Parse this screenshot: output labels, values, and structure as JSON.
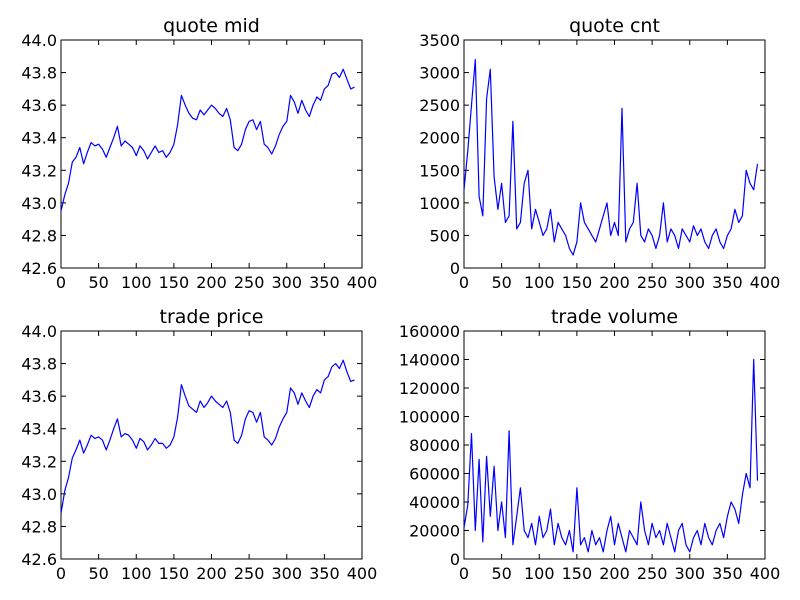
{
  "figure": {
    "background": "#ffffff",
    "line_color": "#0000ff"
  },
  "chart_data": [
    {
      "type": "line",
      "title": "quote mid",
      "xlabel": "",
      "ylabel": "",
      "xlim": [
        0,
        400
      ],
      "ylim": [
        42.6,
        44.0
      ],
      "xticks": [
        "0",
        "50",
        "100",
        "150",
        "200",
        "250",
        "300",
        "350",
        "400"
      ],
      "yticks": [
        "42.6",
        "42.8",
        "43.0",
        "43.2",
        "43.4",
        "43.6",
        "43.8",
        "44.0"
      ],
      "grid": false,
      "x": [
        0,
        5,
        10,
        15,
        20,
        25,
        30,
        35,
        40,
        45,
        50,
        55,
        60,
        65,
        70,
        75,
        80,
        85,
        90,
        95,
        100,
        105,
        110,
        115,
        120,
        125,
        130,
        135,
        140,
        145,
        150,
        155,
        160,
        165,
        170,
        175,
        180,
        185,
        190,
        195,
        200,
        205,
        210,
        215,
        220,
        225,
        230,
        235,
        240,
        245,
        250,
        255,
        260,
        265,
        270,
        275,
        280,
        285,
        290,
        295,
        300,
        305,
        310,
        315,
        320,
        325,
        330,
        335,
        340,
        345,
        350,
        355,
        360,
        365,
        370,
        375,
        380,
        385,
        390
      ],
      "values": [
        42.95,
        43.05,
        43.12,
        43.25,
        43.28,
        43.34,
        43.24,
        43.31,
        43.37,
        43.35,
        43.36,
        43.33,
        43.28,
        43.34,
        43.4,
        43.47,
        43.35,
        43.38,
        43.36,
        43.34,
        43.29,
        43.35,
        43.32,
        43.27,
        43.31,
        43.35,
        43.31,
        43.32,
        43.28,
        43.31,
        43.36,
        43.48,
        43.66,
        43.6,
        43.55,
        43.52,
        43.51,
        43.57,
        43.54,
        43.57,
        43.6,
        43.58,
        43.55,
        43.53,
        43.58,
        43.51,
        43.34,
        43.32,
        43.36,
        43.45,
        43.5,
        43.51,
        43.45,
        43.5,
        43.36,
        43.34,
        43.3,
        43.35,
        43.42,
        43.47,
        43.5,
        43.66,
        43.62,
        43.55,
        43.63,
        43.57,
        43.53,
        43.6,
        43.65,
        43.63,
        43.7,
        43.72,
        43.79,
        43.8,
        43.77,
        43.82,
        43.76,
        43.7,
        43.71
      ]
    },
    {
      "type": "line",
      "title": "quote cnt",
      "xlabel": "",
      "ylabel": "",
      "xlim": [
        0,
        400
      ],
      "ylim": [
        0,
        3500
      ],
      "xticks": [
        "0",
        "50",
        "100",
        "150",
        "200",
        "250",
        "300",
        "350",
        "400"
      ],
      "yticks": [
        "0",
        "500",
        "1000",
        "1500",
        "2000",
        "2500",
        "3000",
        "3500"
      ],
      "grid": false,
      "x": [
        0,
        5,
        10,
        15,
        20,
        25,
        30,
        35,
        40,
        45,
        50,
        55,
        60,
        65,
        70,
        75,
        80,
        85,
        90,
        95,
        100,
        105,
        110,
        115,
        120,
        125,
        130,
        135,
        140,
        145,
        150,
        155,
        160,
        165,
        170,
        175,
        180,
        185,
        190,
        195,
        200,
        205,
        210,
        215,
        220,
        225,
        230,
        235,
        240,
        245,
        250,
        255,
        260,
        265,
        270,
        275,
        280,
        285,
        290,
        295,
        300,
        305,
        310,
        315,
        320,
        325,
        330,
        335,
        340,
        345,
        350,
        355,
        360,
        365,
        370,
        375,
        380,
        385,
        390
      ],
      "values": [
        1200,
        1800,
        2500,
        3200,
        1100,
        800,
        2600,
        3050,
        1400,
        900,
        1300,
        700,
        800,
        2250,
        600,
        700,
        1300,
        1500,
        600,
        900,
        700,
        500,
        600,
        900,
        400,
        700,
        600,
        500,
        300,
        200,
        400,
        1000,
        700,
        600,
        500,
        400,
        600,
        800,
        1000,
        500,
        700,
        500,
        2450,
        400,
        600,
        700,
        1300,
        500,
        400,
        600,
        500,
        300,
        500,
        1000,
        400,
        600,
        500,
        300,
        600,
        500,
        400,
        650,
        500,
        600,
        400,
        300,
        500,
        600,
        400,
        300,
        500,
        600,
        900,
        700,
        800,
        1500,
        1300,
        1200,
        1600
      ]
    },
    {
      "type": "line",
      "title": "trade price",
      "xlabel": "",
      "ylabel": "",
      "xlim": [
        0,
        400
      ],
      "ylim": [
        42.6,
        44.0
      ],
      "xticks": [
        "0",
        "50",
        "100",
        "150",
        "200",
        "250",
        "300",
        "350",
        "400"
      ],
      "yticks": [
        "42.6",
        "42.8",
        "43.0",
        "43.2",
        "43.4",
        "43.6",
        "43.8",
        "44.0"
      ],
      "grid": false,
      "x": [
        0,
        5,
        10,
        15,
        20,
        25,
        30,
        35,
        40,
        45,
        50,
        55,
        60,
        65,
        70,
        75,
        80,
        85,
        90,
        95,
        100,
        105,
        110,
        115,
        120,
        125,
        130,
        135,
        140,
        145,
        150,
        155,
        160,
        165,
        170,
        175,
        180,
        185,
        190,
        195,
        200,
        205,
        210,
        215,
        220,
        225,
        230,
        235,
        240,
        245,
        250,
        255,
        260,
        265,
        270,
        275,
        280,
        285,
        290,
        295,
        300,
        305,
        310,
        315,
        320,
        325,
        330,
        335,
        340,
        345,
        350,
        355,
        360,
        365,
        370,
        375,
        380,
        385,
        390
      ],
      "values": [
        42.88,
        43.02,
        43.1,
        43.22,
        43.27,
        43.33,
        43.25,
        43.3,
        43.36,
        43.34,
        43.35,
        43.33,
        43.27,
        43.33,
        43.4,
        43.46,
        43.35,
        43.37,
        43.36,
        43.33,
        43.28,
        43.34,
        43.32,
        43.27,
        43.3,
        43.34,
        43.31,
        43.31,
        43.28,
        43.3,
        43.35,
        43.47,
        43.67,
        43.6,
        43.54,
        43.52,
        43.5,
        43.57,
        43.53,
        43.56,
        43.6,
        43.57,
        43.55,
        43.53,
        43.57,
        43.5,
        43.33,
        43.31,
        43.36,
        43.46,
        43.51,
        43.5,
        43.44,
        43.5,
        43.35,
        43.33,
        43.3,
        43.34,
        43.41,
        43.46,
        43.5,
        43.65,
        43.62,
        43.55,
        43.62,
        43.57,
        43.53,
        43.6,
        43.64,
        43.62,
        43.7,
        43.72,
        43.78,
        43.8,
        43.77,
        43.82,
        43.75,
        43.69,
        43.7
      ]
    },
    {
      "type": "line",
      "title": "trade volume",
      "xlabel": "",
      "ylabel": "",
      "xlim": [
        0,
        400
      ],
      "ylim": [
        0,
        160000
      ],
      "xticks": [
        "0",
        "50",
        "100",
        "150",
        "200",
        "250",
        "300",
        "350",
        "400"
      ],
      "yticks": [
        "0",
        "20000",
        "40000",
        "60000",
        "80000",
        "100000",
        "120000",
        "140000",
        "160000"
      ],
      "grid": false,
      "x": [
        0,
        5,
        10,
        15,
        20,
        25,
        30,
        35,
        40,
        45,
        50,
        55,
        60,
        65,
        70,
        75,
        80,
        85,
        90,
        95,
        100,
        105,
        110,
        115,
        120,
        125,
        130,
        135,
        140,
        145,
        150,
        155,
        160,
        165,
        170,
        175,
        180,
        185,
        190,
        195,
        200,
        205,
        210,
        215,
        220,
        225,
        230,
        235,
        240,
        245,
        250,
        255,
        260,
        265,
        270,
        275,
        280,
        285,
        290,
        295,
        300,
        305,
        310,
        315,
        320,
        325,
        330,
        335,
        340,
        345,
        350,
        355,
        360,
        365,
        370,
        375,
        380,
        385,
        390
      ],
      "values": [
        22000,
        38000,
        88000,
        20000,
        70000,
        12000,
        72000,
        30000,
        65000,
        20000,
        40000,
        15000,
        90000,
        10000,
        30000,
        50000,
        20000,
        15000,
        25000,
        10000,
        30000,
        15000,
        20000,
        35000,
        10000,
        25000,
        15000,
        10000,
        20000,
        5000,
        50000,
        10000,
        15000,
        5000,
        20000,
        10000,
        15000,
        5000,
        20000,
        30000,
        10000,
        25000,
        15000,
        5000,
        20000,
        15000,
        10000,
        40000,
        20000,
        10000,
        25000,
        15000,
        20000,
        10000,
        25000,
        15000,
        5000,
        20000,
        25000,
        10000,
        5000,
        15000,
        20000,
        10000,
        25000,
        15000,
        10000,
        20000,
        25000,
        15000,
        30000,
        40000,
        35000,
        25000,
        45000,
        60000,
        50000,
        140000,
        55000
      ]
    }
  ]
}
